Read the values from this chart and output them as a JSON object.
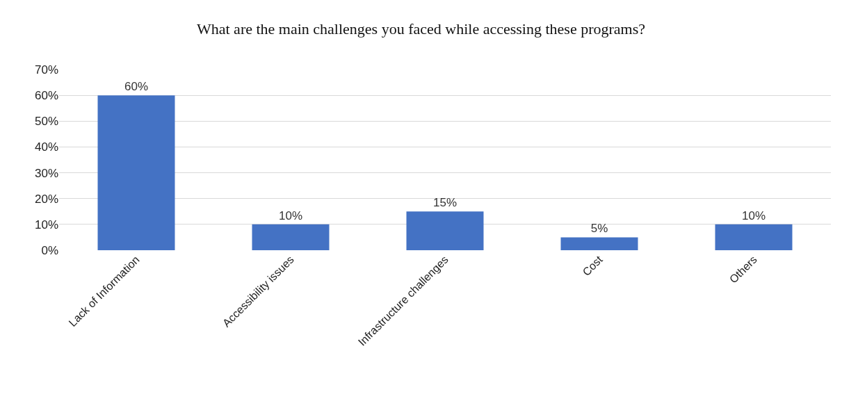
{
  "chart_data": {
    "type": "bar",
    "title": "What are the main challenges you faced while accessing these programs?",
    "categories": [
      "Lack of Information",
      "Accessibility issues",
      "Infrastructure challenges",
      "Cost",
      "Others"
    ],
    "values": [
      60,
      10,
      15,
      5,
      10
    ],
    "value_labels": [
      "60%",
      "10%",
      "15%",
      "5%",
      "10%"
    ],
    "color": "#4472c4",
    "ylim": [
      0,
      70
    ],
    "yticks": [
      {
        "value": 0,
        "label": "0%"
      },
      {
        "value": 10,
        "label": "10%"
      },
      {
        "value": 20,
        "label": "20%"
      },
      {
        "value": 30,
        "label": "30%"
      },
      {
        "value": 40,
        "label": "40%"
      },
      {
        "value": 50,
        "label": "50%"
      },
      {
        "value": 60,
        "label": "60%"
      },
      {
        "value": 70,
        "label": "70%"
      }
    ],
    "grid": "y"
  }
}
